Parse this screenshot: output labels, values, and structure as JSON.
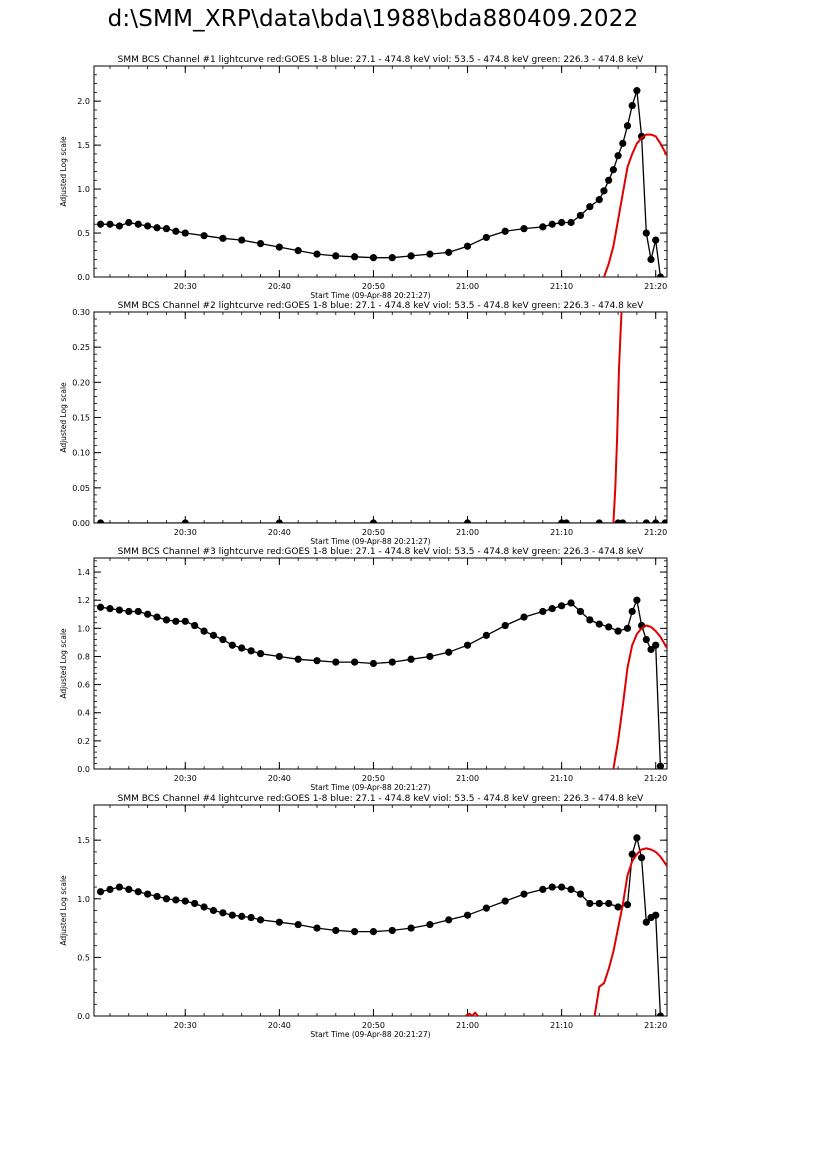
{
  "page": {
    "title": "d:\\SMM_XRP\\data\\bda\\1988\\bda880409.2022"
  },
  "colors": {
    "data": "#000000",
    "goes": "#e00000",
    "axis": "#000000",
    "background": "#ffffff"
  },
  "chart_data": [
    {
      "type": "line",
      "title": "SMM BCS Channel #1 lightcurve  red:GOES 1-8  blue: 27.1 - 474.8 keV  viol: 53.5 - 474.8 keV  green: 226.3 - 474.8 keV",
      "xlabel": "Start Time (09-Apr-88 20:21:27)",
      "ylabel": "Adjusted Log scale",
      "xlim": [
        20.3,
        81.2
      ],
      "ylim": [
        0,
        2.4
      ],
      "xticks": [
        30,
        40,
        50,
        60,
        70,
        80
      ],
      "xticklabels": [
        "20:30",
        "20:40",
        "20:50",
        "21:00",
        "21:10",
        "21:20"
      ],
      "yticks": [
        0,
        0.5,
        1.0,
        1.5,
        2.0
      ],
      "yticklabels": [
        "0.0",
        "0.5",
        "1.0",
        "1.5",
        "2.0"
      ],
      "series": [
        {
          "style": "markers+line",
          "x": [
            21,
            22,
            23,
            24,
            25,
            26,
            27,
            28,
            29,
            30,
            32,
            34,
            36,
            38,
            40,
            42,
            44,
            46,
            48,
            50,
            52,
            54,
            56,
            58,
            60,
            62,
            64,
            66,
            68,
            69,
            70,
            71,
            72,
            73,
            74,
            74.5,
            75,
            75.5,
            76,
            76.5,
            77,
            77.5,
            78,
            78.5,
            79,
            79.5,
            80,
            80.5
          ],
          "y": [
            0.6,
            0.6,
            0.58,
            0.62,
            0.6,
            0.58,
            0.56,
            0.55,
            0.52,
            0.5,
            0.47,
            0.44,
            0.42,
            0.38,
            0.34,
            0.3,
            0.26,
            0.24,
            0.23,
            0.22,
            0.22,
            0.24,
            0.26,
            0.28,
            0.35,
            0.45,
            0.52,
            0.55,
            0.57,
            0.6,
            0.62,
            0.62,
            0.7,
            0.8,
            0.88,
            0.98,
            1.1,
            1.22,
            1.38,
            1.52,
            1.72,
            1.95,
            2.12,
            1.6,
            0.5,
            0.2,
            0.42,
            0.0
          ]
        },
        {
          "style": "line",
          "x": [
            74.5,
            75,
            75.5,
            76,
            76.5,
            77,
            77.5,
            78,
            78.5,
            79,
            79.5,
            80,
            80.5,
            81.2
          ],
          "y": [
            0.0,
            0.15,
            0.35,
            0.65,
            0.95,
            1.25,
            1.4,
            1.52,
            1.58,
            1.62,
            1.62,
            1.6,
            1.52,
            1.38
          ]
        }
      ]
    },
    {
      "type": "line",
      "title": "SMM BCS Channel #2 lightcurve  red:GOES 1-8  blue: 27.1 - 474.8 keV  viol: 53.5 - 474.8 keV  green: 226.3 - 474.8 keV",
      "xlabel": "Start Time (09-Apr-88 20:21:27)",
      "ylabel": "Adjusted Log scale",
      "xlim": [
        20.3,
        81.2
      ],
      "ylim": [
        0,
        0.3
      ],
      "xticks": [
        30,
        40,
        50,
        60,
        70,
        80
      ],
      "xticklabels": [
        "20:30",
        "20:40",
        "20:50",
        "21:00",
        "21:10",
        "21:20"
      ],
      "yticks": [
        0,
        0.05,
        0.1,
        0.15,
        0.2,
        0.25,
        0.3
      ],
      "yticklabels": [
        "0.00",
        "0.05",
        "0.10",
        "0.15",
        "0.20",
        "0.25",
        "0.30"
      ],
      "series": [
        {
          "style": "markers+line",
          "x": [
            21,
            30,
            40,
            50,
            60,
            70,
            70.5,
            74,
            76,
            76.5,
            79,
            80,
            81
          ],
          "y": [
            0,
            0,
            0,
            0,
            0,
            0,
            0,
            0,
            0,
            0,
            0,
            0,
            0
          ]
        },
        {
          "style": "line",
          "x": [
            75.5,
            75.7,
            75.9,
            76.1,
            76.4
          ],
          "y": [
            0.0,
            0.05,
            0.12,
            0.22,
            0.31
          ]
        }
      ]
    },
    {
      "type": "line",
      "title": "SMM BCS Channel #3 lightcurve  red:GOES 1-8  blue: 27.1 - 474.8 keV  viol: 53.5 - 474.8 keV  green: 226.3 - 474.8 keV",
      "xlabel": "Start Time (09-Apr-88 20:21:27)",
      "ylabel": "Adjusted Log scale",
      "xlim": [
        20.3,
        81.2
      ],
      "ylim": [
        0,
        1.5
      ],
      "xticks": [
        30,
        40,
        50,
        60,
        70,
        80
      ],
      "xticklabels": [
        "20:30",
        "20:40",
        "20:50",
        "21:00",
        "21:10",
        "21:20"
      ],
      "yticks": [
        0,
        0.2,
        0.4,
        0.6,
        0.8,
        1.0,
        1.2,
        1.4
      ],
      "yticklabels": [
        "0.0",
        "0.2",
        "0.4",
        "0.6",
        "0.8",
        "1.0",
        "1.2",
        "1.4"
      ],
      "series": [
        {
          "style": "markers+line",
          "x": [
            21,
            22,
            23,
            24,
            25,
            26,
            27,
            28,
            29,
            30,
            31,
            32,
            33,
            34,
            35,
            36,
            37,
            38,
            40,
            42,
            44,
            46,
            48,
            50,
            52,
            54,
            56,
            58,
            60,
            62,
            64,
            66,
            68,
            69,
            70,
            71,
            72,
            73,
            74,
            75,
            76,
            77,
            77.5,
            78,
            78.5,
            79,
            79.5,
            80,
            80.5
          ],
          "y": [
            1.15,
            1.14,
            1.13,
            1.12,
            1.12,
            1.1,
            1.08,
            1.06,
            1.05,
            1.05,
            1.02,
            0.98,
            0.95,
            0.92,
            0.88,
            0.86,
            0.84,
            0.82,
            0.8,
            0.78,
            0.77,
            0.76,
            0.76,
            0.75,
            0.76,
            0.78,
            0.8,
            0.83,
            0.88,
            0.95,
            1.02,
            1.08,
            1.12,
            1.14,
            1.16,
            1.18,
            1.12,
            1.06,
            1.03,
            1.01,
            0.98,
            1.0,
            1.12,
            1.2,
            1.02,
            0.92,
            0.85,
            0.88,
            0.02
          ]
        },
        {
          "style": "line",
          "x": [
            75.5,
            76,
            76.5,
            77,
            77.5,
            78,
            78.5,
            79,
            79.5,
            80,
            80.5,
            81.2
          ],
          "y": [
            0.0,
            0.2,
            0.45,
            0.72,
            0.88,
            0.96,
            1.0,
            1.02,
            1.01,
            0.98,
            0.94,
            0.86
          ]
        }
      ]
    },
    {
      "type": "line",
      "title": "SMM BCS Channel #4 lightcurve  red:GOES 1-8  blue: 27.1 - 474.8 keV  viol: 53.5 - 474.8 keV  green: 226.3 - 474.8 keV",
      "xlabel": "Start Time (09-Apr-88 20:21:27)",
      "ylabel": "Adjusted Log scale",
      "xlim": [
        20.3,
        81.2
      ],
      "ylim": [
        0,
        1.8
      ],
      "xticks": [
        30,
        40,
        50,
        60,
        70,
        80
      ],
      "xticklabels": [
        "20:30",
        "20:40",
        "20:50",
        "21:00",
        "21:10",
        "21:20"
      ],
      "yticks": [
        0,
        0.5,
        1.0,
        1.5
      ],
      "yticklabels": [
        "0.0",
        "0.5",
        "1.0",
        "1.5"
      ],
      "series": [
        {
          "style": "markers+line",
          "x": [
            21,
            22,
            23,
            24,
            25,
            26,
            27,
            28,
            29,
            30,
            31,
            32,
            33,
            34,
            35,
            36,
            37,
            38,
            40,
            42,
            44,
            46,
            48,
            50,
            52,
            54,
            56,
            58,
            60,
            62,
            64,
            66,
            68,
            69,
            70,
            71,
            72,
            73,
            74,
            75,
            76,
            77,
            77.5,
            78,
            78.5,
            79,
            79.5,
            80,
            80.5
          ],
          "y": [
            1.06,
            1.08,
            1.1,
            1.08,
            1.06,
            1.04,
            1.02,
            1.0,
            0.99,
            0.98,
            0.96,
            0.93,
            0.9,
            0.88,
            0.86,
            0.85,
            0.84,
            0.82,
            0.8,
            0.78,
            0.75,
            0.73,
            0.72,
            0.72,
            0.73,
            0.75,
            0.78,
            0.82,
            0.86,
            0.92,
            0.98,
            1.04,
            1.08,
            1.1,
            1.1,
            1.08,
            1.04,
            0.96,
            0.96,
            0.96,
            0.93,
            0.95,
            1.38,
            1.52,
            1.35,
            0.8,
            0.84,
            0.86,
            0.0
          ]
        },
        {
          "style": "line",
          "x": [
            59.8,
            60.2,
            60.5,
            60.8,
            61.1
          ],
          "y": [
            0.0,
            0.02,
            0.0,
            0.03,
            0.0
          ]
        },
        {
          "style": "line",
          "x": [
            73.5,
            74,
            74.5,
            75,
            75.5,
            76,
            76.5,
            77,
            77.5,
            78,
            78.5,
            79,
            79.5,
            80,
            80.5,
            81.2
          ],
          "y": [
            0.0,
            0.25,
            0.28,
            0.4,
            0.55,
            0.75,
            0.95,
            1.2,
            1.32,
            1.38,
            1.42,
            1.43,
            1.42,
            1.4,
            1.36,
            1.28
          ]
        }
      ]
    }
  ]
}
